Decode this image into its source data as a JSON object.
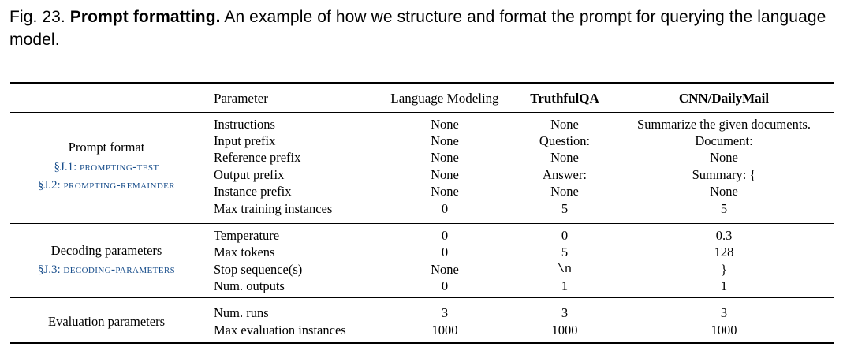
{
  "caption": {
    "label": "Fig. 23.",
    "title": "Prompt formatting.",
    "text": "An example of how we structure and format the prompt for querying the language model."
  },
  "headers": {
    "parameter": "Parameter",
    "lm": "Language Modeling",
    "tqa": "TruthfulQA",
    "cnn": "CNN/DailyMail"
  },
  "groups": {
    "prompt": {
      "label": "Prompt format",
      "links": [
        {
          "section": "§J.1:",
          "name": "prompting-test"
        },
        {
          "section": "§J.2:",
          "name": "prompting-remainder"
        }
      ],
      "rows": [
        {
          "param": "Instructions",
          "lm": "None",
          "tqa": "None",
          "cnn": "Summarize the given documents."
        },
        {
          "param": "Input prefix",
          "lm": "None",
          "tqa": "Question:",
          "cnn": "Document:"
        },
        {
          "param": "Reference prefix",
          "lm": "None",
          "tqa": "None",
          "cnn": "None"
        },
        {
          "param": "Output prefix",
          "lm": "None",
          "tqa": "Answer:",
          "cnn": "Summary: {"
        },
        {
          "param": "Instance prefix",
          "lm": "None",
          "tqa": "None",
          "cnn": "None"
        },
        {
          "param": "Max training instances",
          "lm": "0",
          "tqa": "5",
          "cnn": "5"
        }
      ]
    },
    "decoding": {
      "label": "Decoding parameters",
      "links": [
        {
          "section": "§J.3:",
          "name": "decoding-parameters"
        }
      ],
      "rows": [
        {
          "param": "Temperature",
          "lm": "0",
          "tqa": "0",
          "cnn": "0.3"
        },
        {
          "param": "Max tokens",
          "lm": "0",
          "tqa": "5",
          "cnn": "128"
        },
        {
          "param": "Stop sequence(s)",
          "lm": "None",
          "tqa": "\\n",
          "cnn": "}"
        },
        {
          "param": "Num. outputs",
          "lm": "0",
          "tqa": "1",
          "cnn": "1"
        }
      ]
    },
    "evaluation": {
      "label": "Evaluation parameters",
      "rows": [
        {
          "param": "Num. runs",
          "lm": "3",
          "tqa": "3",
          "cnn": "3"
        },
        {
          "param": "Max evaluation instances",
          "lm": "1000",
          "tqa": "1000",
          "cnn": "1000"
        }
      ]
    }
  }
}
